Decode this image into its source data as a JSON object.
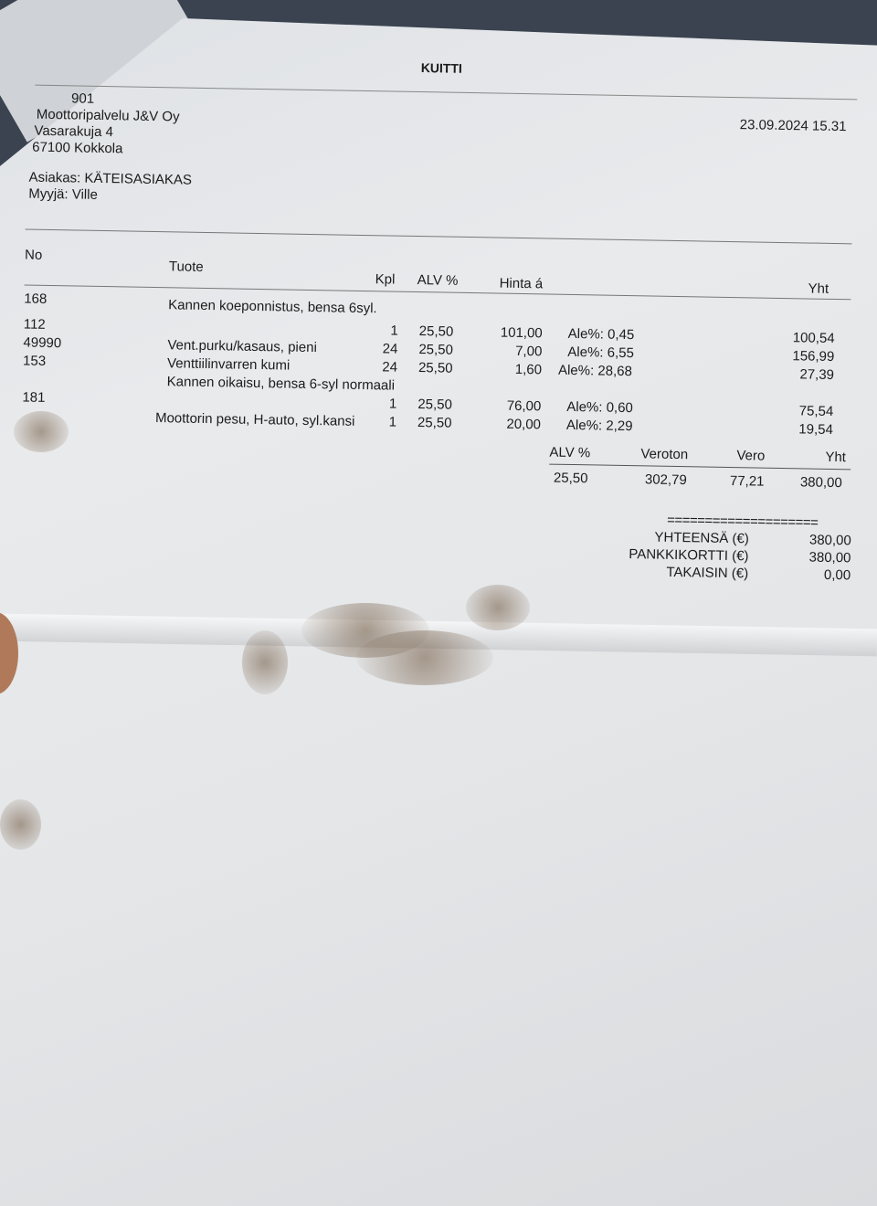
{
  "receipt": {
    "title": "KUITTI",
    "company_id": "901",
    "company": "Moottoripalvelu J&V Oy",
    "street": "Vasarakuja 4",
    "city": "67100 Kokkola",
    "datetime": "23.09.2024 15.31",
    "customer": "Asiakas: KÄTEISASIAKAS",
    "seller": "Myyjä: Ville",
    "headers": {
      "no": "No",
      "product": "Tuote",
      "qty": "Kpl",
      "vat": "ALV %",
      "unit_price": "Hinta á",
      "total": "Yht"
    },
    "group_labels": [
      {
        "no": "168",
        "text": "Kannen koeponnistus, bensa 6syl."
      },
      {
        "no": "181",
        "text": "Kannen oikaisu, bensa 6-syl normaali"
      }
    ],
    "items": [
      {
        "no": "112",
        "product": "",
        "qty": "1",
        "vat": "25,50",
        "price": "101,00",
        "discount": "Ale%: 0,45",
        "total": "100,54"
      },
      {
        "no": "49990",
        "product": "Vent.purku/kasaus, pieni",
        "qty": "24",
        "vat": "25,50",
        "price": "7,00",
        "discount": "Ale%: 6,55",
        "total": "156,99"
      },
      {
        "no": "153",
        "product": "Venttiilinvarren kumi",
        "qty": "24",
        "vat": "25,50",
        "price": "1,60",
        "discount": "Ale%: 28,68",
        "total": "27,39"
      },
      {
        "no": "",
        "product": "",
        "qty": "1",
        "vat": "25,50",
        "price": "76,00",
        "discount": "Ale%: 0,60",
        "total": "75,54"
      },
      {
        "no": "",
        "product": "Moottorin pesu, H-auto, syl.kansi",
        "qty": "1",
        "vat": "25,50",
        "price": "20,00",
        "discount": "Ale%: 2,29",
        "total": "19,54"
      }
    ],
    "vat_summary": {
      "headers": {
        "vat": "ALV %",
        "net": "Veroton",
        "tax": "Vero",
        "total": "Yht"
      },
      "row": {
        "vat": "25,50",
        "net": "302,79",
        "tax": "77,21",
        "total": "380,00"
      }
    },
    "separator": "====================",
    "totals": [
      {
        "label": "YHTEENSÄ (€)",
        "value": "380,00"
      },
      {
        "label": "PANKKIKORTTI (€)",
        "value": "380,00"
      },
      {
        "label": "TAKAISIN (€)",
        "value": "0,00"
      }
    ]
  }
}
